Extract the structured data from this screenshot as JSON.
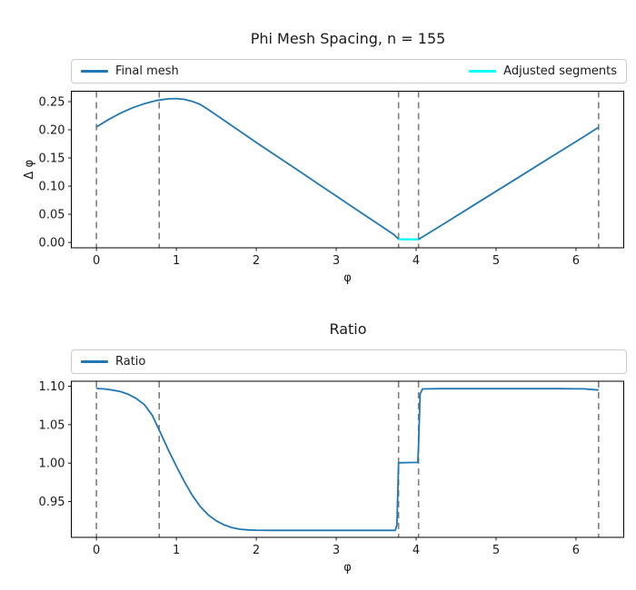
{
  "figure_title": "Phi Mesh Spacing, n = 155",
  "chart_data": [
    {
      "type": "line",
      "title": "Phi Mesh Spacing, n = 155",
      "xlabel": "φ",
      "ylabel": "Δ φ",
      "xlim": [
        -0.3142,
        6.5975
      ],
      "ylim": [
        -0.0095,
        0.2685
      ],
      "grid": false,
      "legend_position": "above axes, full width, left and right aligned",
      "xticks": {
        "values": [
          0,
          1,
          2,
          3,
          4,
          5,
          6
        ],
        "labels": [
          "0",
          "1",
          "2",
          "3",
          "4",
          "5",
          "6"
        ]
      },
      "yticks": {
        "values": [
          0.0,
          0.05,
          0.1,
          0.15,
          0.2,
          0.25
        ],
        "labels": [
          "0.00",
          "0.05",
          "0.10",
          "0.15",
          "0.20",
          "0.25"
        ]
      },
      "vlines": {
        "values": [
          0,
          0.785,
          3.78,
          4.03,
          6.283
        ],
        "color": "#7f7f7f",
        "dash": "7,5",
        "width": 1.6
      },
      "legend": [
        {
          "label": "Final mesh",
          "color": "#1f77b4"
        },
        {
          "label": "Adjusted segments",
          "color": "#00ffff"
        }
      ],
      "series": [
        {
          "name": "Final mesh",
          "color": "#1f77b4",
          "width": 1.8,
          "points": [
            [
              0,
              0.205
            ],
            [
              0.15,
              0.218
            ],
            [
              0.3,
              0.2295
            ],
            [
              0.45,
              0.239
            ],
            [
              0.6,
              0.2465
            ],
            [
              0.75,
              0.252
            ],
            [
              0.9,
              0.255
            ],
            [
              1.0,
              0.2555
            ],
            [
              1.1,
              0.254
            ],
            [
              1.2,
              0.2505
            ],
            [
              1.3,
              0.245
            ],
            [
              1.4,
              0.236
            ],
            [
              1.6,
              0.2165
            ],
            [
              1.8,
              0.197
            ],
            [
              2.0,
              0.1775
            ],
            [
              2.2,
              0.1585
            ],
            [
              2.4,
              0.1395
            ],
            [
              2.6,
              0.1205
            ],
            [
              2.8,
              0.1015
            ],
            [
              3.0,
              0.0825
            ],
            [
              3.2,
              0.0635
            ],
            [
              3.4,
              0.0445
            ],
            [
              3.6,
              0.0255
            ],
            [
              3.72,
              0.014
            ],
            [
              3.78,
              0.006
            ],
            [
              3.85,
              0.0055
            ],
            [
              4.03,
              0.0055
            ],
            [
              4.1,
              0.0115
            ],
            [
              4.3,
              0.029
            ],
            [
              4.6,
              0.0555
            ],
            [
              4.9,
              0.082
            ],
            [
              5.2,
              0.1085
            ],
            [
              5.5,
              0.135
            ],
            [
              5.8,
              0.1615
            ],
            [
              6.1,
              0.188
            ],
            [
              6.283,
              0.2045
            ]
          ]
        },
        {
          "name": "Adjusted segments",
          "color": "#00ffff",
          "width": 2.2,
          "points": [
            [
              3.78,
              0.0055
            ],
            [
              4.03,
              0.0055
            ]
          ]
        }
      ]
    },
    {
      "type": "line",
      "title": "Ratio",
      "xlabel": "φ",
      "ylabel": "",
      "xlim": [
        -0.3142,
        6.5975
      ],
      "ylim": [
        0.9035,
        1.1065
      ],
      "grid": false,
      "legend_position": "above axes, full width, left aligned",
      "xticks": {
        "values": [
          0,
          1,
          2,
          3,
          4,
          5,
          6
        ],
        "labels": [
          "0",
          "1",
          "2",
          "3",
          "4",
          "5",
          "6"
        ]
      },
      "yticks": {
        "values": [
          0.95,
          1.0,
          1.05,
          1.1
        ],
        "labels": [
          "0.95",
          "1.00",
          "1.05",
          "1.10"
        ]
      },
      "vlines": {
        "values": [
          0,
          0.785,
          3.78,
          4.03,
          6.283
        ],
        "color": "#7f7f7f",
        "dash": "7,5",
        "width": 1.6
      },
      "legend": [
        {
          "label": "Ratio",
          "color": "#1f77b4"
        }
      ],
      "series": [
        {
          "name": "Ratio",
          "color": "#1f77b4",
          "width": 1.8,
          "points": [
            [
              0,
              1.097
            ],
            [
              0.1,
              1.0965
            ],
            [
              0.2,
              1.095
            ],
            [
              0.3,
              1.093
            ],
            [
              0.4,
              1.0895
            ],
            [
              0.5,
              1.084
            ],
            [
              0.6,
              1.076
            ],
            [
              0.7,
              1.062
            ],
            [
              0.785,
              1.043
            ],
            [
              0.9,
              1.017
            ],
            [
              1.0,
              0.996
            ],
            [
              1.1,
              0.976
            ],
            [
              1.2,
              0.958
            ],
            [
              1.3,
              0.9435
            ],
            [
              1.4,
              0.9325
            ],
            [
              1.5,
              0.925
            ],
            [
              1.6,
              0.9195
            ],
            [
              1.7,
              0.916
            ],
            [
              1.8,
              0.914
            ],
            [
              1.9,
              0.9132
            ],
            [
              2.0,
              0.9128
            ],
            [
              2.2,
              0.9126
            ],
            [
              2.6,
              0.9126
            ],
            [
              3.0,
              0.9126
            ],
            [
              3.4,
              0.9126
            ],
            [
              3.74,
              0.9126
            ],
            [
              3.76,
              0.92
            ],
            [
              3.78,
              1.0005
            ],
            [
              3.9,
              1.0008
            ],
            [
              4.02,
              1.001
            ],
            [
              4.03,
              1.02
            ],
            [
              4.05,
              1.09
            ],
            [
              4.08,
              1.0965
            ],
            [
              4.3,
              1.0968
            ],
            [
              4.8,
              1.0968
            ],
            [
              5.3,
              1.0968
            ],
            [
              5.8,
              1.0968
            ],
            [
              6.1,
              1.0966
            ],
            [
              6.283,
              1.095
            ]
          ]
        }
      ]
    }
  ]
}
